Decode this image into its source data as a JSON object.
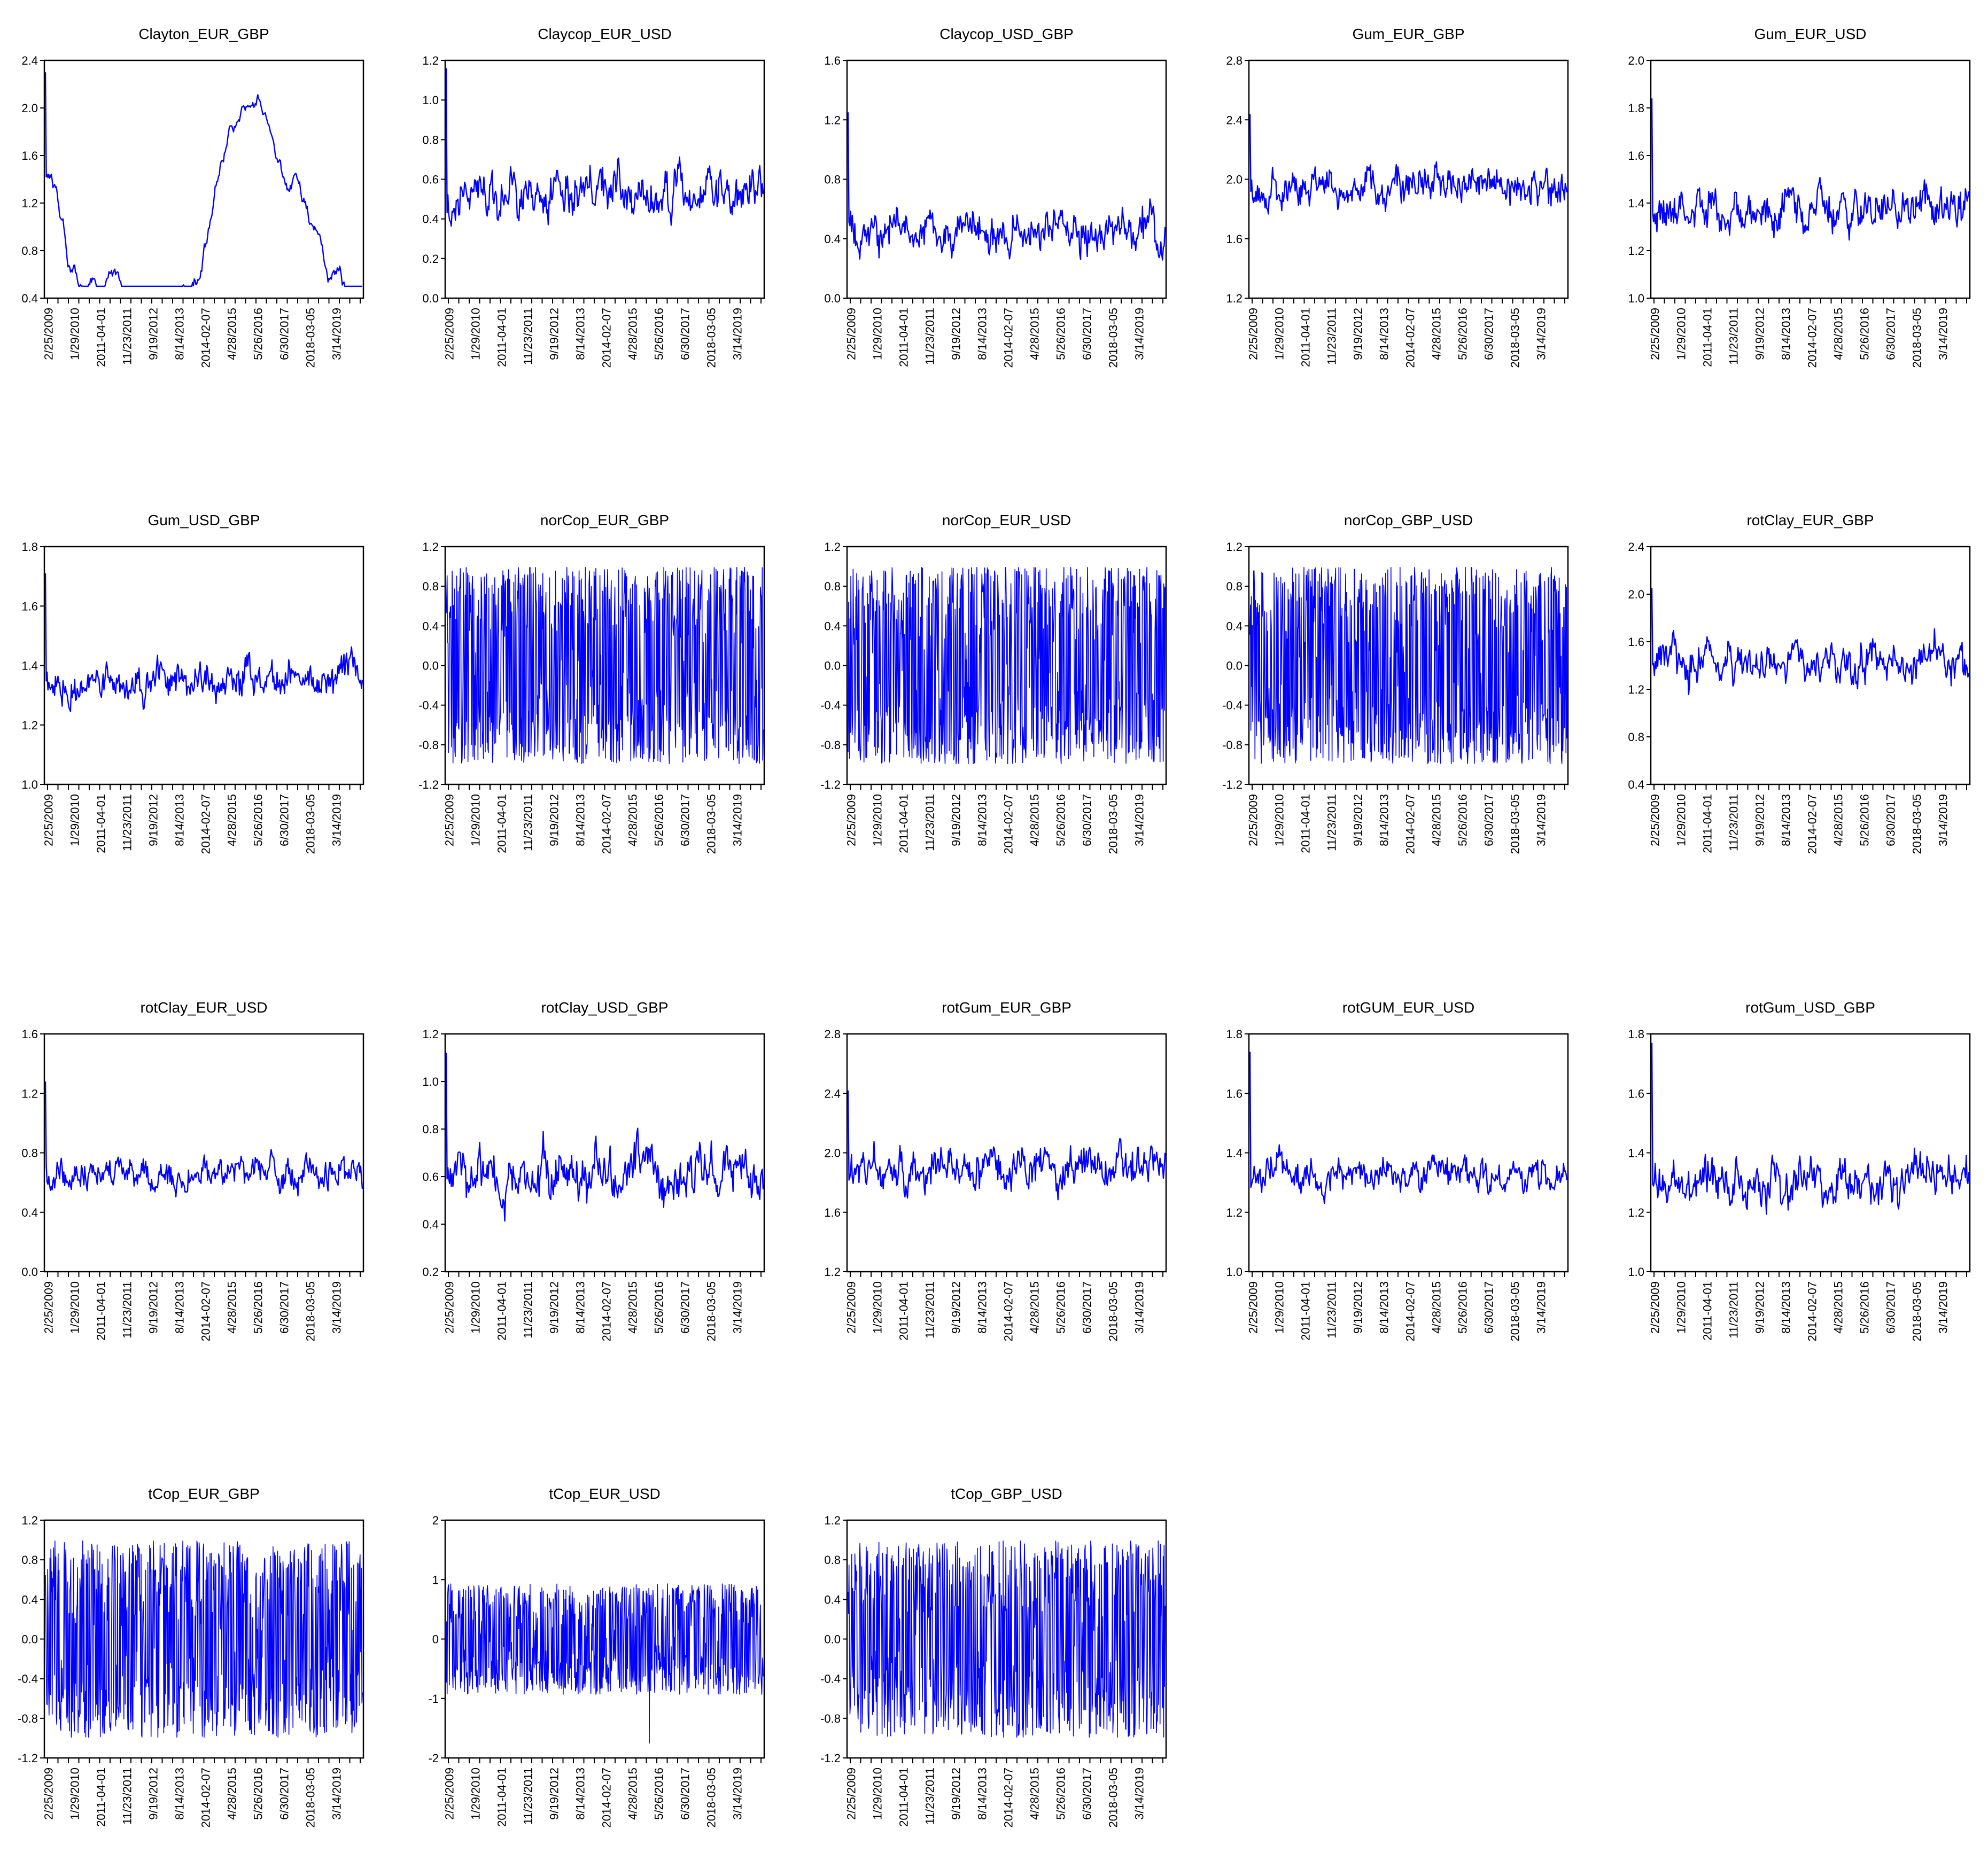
{
  "x_date_labels": [
    "2/25/2009",
    "1/29/2010",
    "2011-04-01",
    "11/23/2011",
    "9/19/2012",
    "8/14/2013",
    "2014-02-07",
    "4/28/2015",
    "5/26/2016",
    "6/30/2017",
    "2018-03-05",
    "3/14/2019"
  ],
  "line_color": "#0000ff",
  "chart_data": [
    {
      "title": "Clayton_EUR_GBP",
      "type": "line",
      "ylim": [
        0.4,
        2.4
      ],
      "yticks": [
        "2.4",
        "2.0",
        "1.6",
        "1.2",
        "0.8",
        "0.4"
      ],
      "style": "smooth",
      "base": 1.4,
      "amp": 0.35,
      "lo": 0.5,
      "hi": 2.3,
      "seed": 11
    },
    {
      "title": "Claycop_EUR_USD",
      "type": "line",
      "ylim": [
        0.0,
        1.2
      ],
      "yticks": [
        "1.2",
        "1.0",
        "0.8",
        "0.6",
        "0.4",
        "0.2",
        "0.0"
      ],
      "style": "noisy",
      "base": 0.52,
      "amp": 0.14,
      "lo": 0.1,
      "hi": 1.16,
      "seed": 12
    },
    {
      "title": "Claycop_USD_GBP",
      "type": "line",
      "ylim": [
        0.0,
        1.6
      ],
      "yticks": [
        "1.6",
        "1.2",
        "0.8",
        "0.4",
        "0.0"
      ],
      "style": "noisy",
      "base": 0.45,
      "amp": 0.17,
      "lo": 0.05,
      "hi": 1.25,
      "seed": 13
    },
    {
      "title": "Gum_EUR_GBP",
      "type": "line",
      "ylim": [
        1.2,
        2.8
      ],
      "yticks": [
        "2.8",
        "2.4",
        "2.0",
        "1.6",
        "1.2"
      ],
      "style": "noisy",
      "base": 1.95,
      "amp": 0.15,
      "lo": 1.33,
      "hi": 2.44,
      "seed": 14
    },
    {
      "title": "Gum_EUR_USD",
      "type": "line",
      "ylim": [
        1.0,
        2.0
      ],
      "yticks": [
        "2.0",
        "1.8",
        "1.6",
        "1.4",
        "1.2",
        "1.0"
      ],
      "style": "noisy",
      "base": 1.37,
      "amp": 0.1,
      "lo": 1.08,
      "hi": 1.84,
      "seed": 15
    },
    {
      "title": "Gum_USD_GBP",
      "type": "line",
      "ylim": [
        1.0,
        1.8
      ],
      "yticks": [
        "1.8",
        "1.6",
        "1.4",
        "1.2",
        "1.0"
      ],
      "style": "noisy",
      "base": 1.35,
      "amp": 0.08,
      "lo": 1.09,
      "hi": 1.71,
      "seed": 16
    },
    {
      "title": "norCop_EUR_GBP",
      "type": "line",
      "ylim": [
        -1.2,
        1.2
      ],
      "yticks": [
        "1.2",
        "0.8",
        "0.4",
        "0.0",
        "-0.4",
        "-0.8",
        "-1.2"
      ],
      "style": "dense",
      "base": 0,
      "amp": 1.0,
      "lo": -0.99,
      "hi": 0.99,
      "seed": 17
    },
    {
      "title": "norCop_EUR_USD",
      "type": "line",
      "ylim": [
        -1.2,
        1.2
      ],
      "yticks": [
        "1.2",
        "0.8",
        "0.4",
        "0.0",
        "-0.4",
        "-0.8",
        "-1.2"
      ],
      "style": "dense",
      "base": 0,
      "amp": 1.0,
      "lo": -0.99,
      "hi": 0.99,
      "seed": 18
    },
    {
      "title": "norCop_GBP_USD",
      "type": "line",
      "ylim": [
        -1.2,
        1.2
      ],
      "yticks": [
        "1.2",
        "0.8",
        "0.4",
        "0.0",
        "-0.4",
        "-0.8",
        "-1.2"
      ],
      "style": "dense",
      "base": 0,
      "amp": 1.0,
      "lo": -0.99,
      "hi": 0.99,
      "seed": 19
    },
    {
      "title": "rotClay_EUR_GBP",
      "type": "line",
      "ylim": [
        0.4,
        2.4
      ],
      "yticks": [
        "2.4",
        "2.0",
        "1.6",
        "1.2",
        "0.8",
        "0.4"
      ],
      "style": "noisy",
      "base": 1.42,
      "amp": 0.2,
      "lo": 0.6,
      "hi": 2.05,
      "seed": 20
    },
    {
      "title": "rotClay_EUR_USD",
      "type": "line",
      "ylim": [
        0.0,
        1.6
      ],
      "yticks": [
        "1.6",
        "1.2",
        "0.8",
        "0.4",
        "0.0"
      ],
      "style": "noisy",
      "base": 0.65,
      "amp": 0.13,
      "lo": 0.16,
      "hi": 1.28,
      "seed": 21
    },
    {
      "title": "rotClay_USD_GBP",
      "type": "line",
      "ylim": [
        0.2,
        1.2
      ],
      "yticks": [
        "1.2",
        "1.0",
        "0.8",
        "0.6",
        "0.4",
        "0.2"
      ],
      "style": "noisy",
      "base": 0.62,
      "amp": 0.13,
      "lo": 0.22,
      "hi": 1.12,
      "seed": 22
    },
    {
      "title": "rotGum_EUR_GBP",
      "type": "line",
      "ylim": [
        1.2,
        2.8
      ],
      "yticks": [
        "2.8",
        "2.4",
        "2.0",
        "1.6",
        "1.2"
      ],
      "style": "noisy",
      "base": 1.9,
      "amp": 0.17,
      "lo": 1.28,
      "hi": 2.42,
      "seed": 23
    },
    {
      "title": "rotGUM_EUR_USD",
      "type": "line",
      "ylim": [
        1.0,
        1.8
      ],
      "yticks": [
        "1.8",
        "1.6",
        "1.4",
        "1.2",
        "1.0"
      ],
      "style": "noisy",
      "base": 1.32,
      "amp": 0.07,
      "lo": 1.07,
      "hi": 1.74,
      "seed": 24
    },
    {
      "title": "rotGum_USD_GBP",
      "type": "line",
      "ylim": [
        1.0,
        1.8
      ],
      "yticks": [
        "1.8",
        "1.6",
        "1.4",
        "1.2",
        "1.0"
      ],
      "style": "noisy",
      "base": 1.3,
      "amp": 0.09,
      "lo": 1.05,
      "hi": 1.77,
      "seed": 25
    },
    {
      "title": "tCop_EUR_GBP",
      "type": "line",
      "ylim": [
        -1.2,
        1.2
      ],
      "yticks": [
        "1.2",
        "0.8",
        "0.4",
        "0.0",
        "-0.4",
        "-0.8",
        "-1.2"
      ],
      "style": "dense",
      "base": 0,
      "amp": 1.0,
      "lo": -0.99,
      "hi": 0.99,
      "seed": 26
    },
    {
      "title": "tCop_EUR_USD",
      "type": "line",
      "ylim": [
        -2,
        2
      ],
      "yticks": [
        "2",
        "1",
        "0",
        "-1",
        "-2"
      ],
      "style": "dense",
      "base": 0,
      "amp": 0.93,
      "lo": -0.95,
      "hi": 0.95,
      "seed": 27,
      "spike": -1.75
    },
    {
      "title": "tCop_GBP_USD",
      "type": "line",
      "ylim": [
        -1.2,
        1.2
      ],
      "yticks": [
        "1.2",
        "0.8",
        "0.4",
        "0.0",
        "-0.4",
        "-0.8",
        "-1.2"
      ],
      "style": "dense",
      "base": 0,
      "amp": 1.0,
      "lo": -0.99,
      "hi": 0.99,
      "seed": 28
    }
  ]
}
